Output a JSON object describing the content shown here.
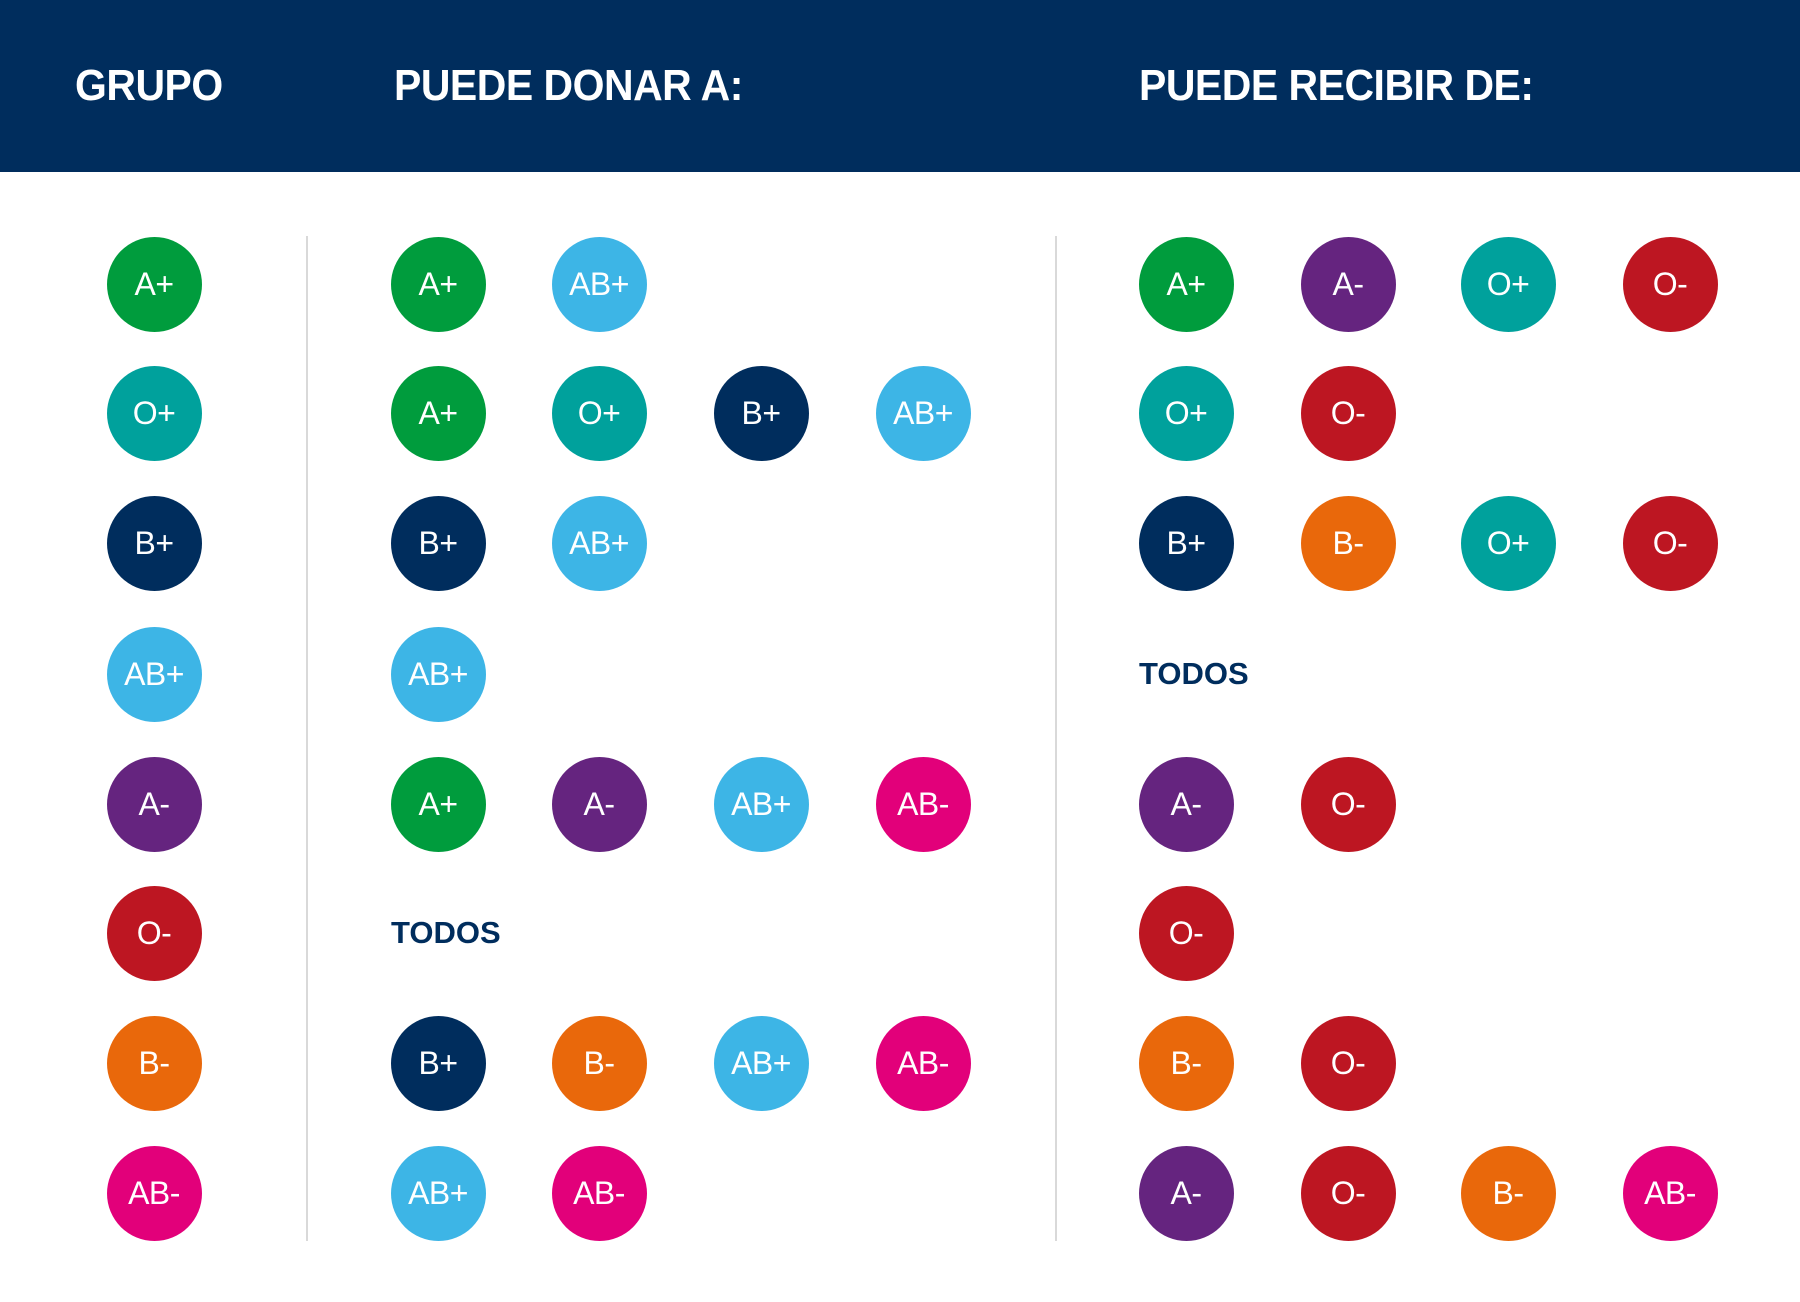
{
  "header": {
    "group": "GRUPO",
    "donate": "PUEDE DONAR A:",
    "receive": "PUEDE RECIBIR DE:",
    "background": "#002d5d"
  },
  "colors": {
    "A+": "#009c3d",
    "O+": "#00a19c",
    "B+": "#002d5d",
    "AB+": "#3db5e6",
    "A-": "#65247f",
    "O-": "#bd1622",
    "B-": "#e9680b",
    "AB-": "#e2007a"
  },
  "todos_label": "TODOS",
  "rows": [
    {
      "group": "A+",
      "donate": [
        "A+",
        "AB+"
      ],
      "receive": [
        "A+",
        "A-",
        "O+",
        "O-"
      ]
    },
    {
      "group": "O+",
      "donate": [
        "A+",
        "O+",
        "B+",
        "AB+"
      ],
      "receive": [
        "O+",
        "O-"
      ]
    },
    {
      "group": "B+",
      "donate": [
        "B+",
        "AB+"
      ],
      "receive": [
        "B+",
        "B-",
        "O+",
        "O-"
      ]
    },
    {
      "group": "AB+",
      "donate": [
        "AB+"
      ],
      "receive": "TODOS"
    },
    {
      "group": "A-",
      "donate": [
        "A+",
        "A-",
        "AB+",
        "AB-"
      ],
      "receive": [
        "A-",
        "O-"
      ]
    },
    {
      "group": "O-",
      "donate": "TODOS",
      "receive": [
        "O-"
      ]
    },
    {
      "group": "B-",
      "donate": [
        "B+",
        "B-",
        "AB+",
        "AB-"
      ],
      "receive": [
        "B-",
        "O-"
      ]
    },
    {
      "group": "AB-",
      "donate": [
        "AB+",
        "AB-"
      ],
      "receive": [
        "A-",
        "O-",
        "B-",
        "AB-"
      ]
    }
  ]
}
